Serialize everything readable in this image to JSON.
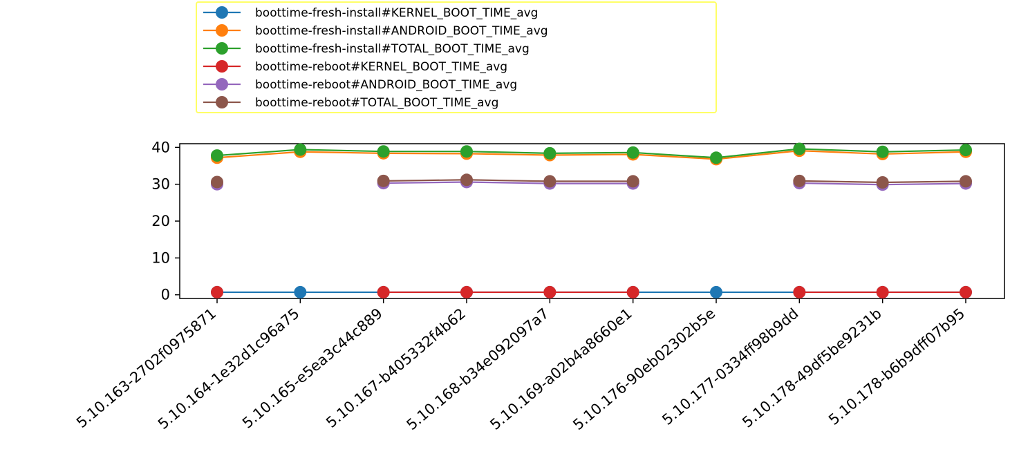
{
  "chart_data": {
    "type": "line",
    "title": "",
    "xlabel": "",
    "ylabel": "",
    "categories": [
      "5.10.163-2702f0975871",
      "5.10.164-1e32d1c96a75",
      "5.10.165-e5ea3c44c889",
      "5.10.167-b405332f4b62",
      "5.10.168-b34e092097a7",
      "5.10.169-a02b4a8660e1",
      "5.10.176-90eb02302b5e",
      "5.10.177-0334ff98b9dd",
      "5.10.178-49df5be9231b",
      "5.10.178-b6b9dff07b95"
    ],
    "ylim": [
      -1,
      41
    ],
    "yticks": [
      0,
      10,
      20,
      30,
      40
    ],
    "grid": false,
    "legend_position": "top-left, above plot",
    "series": [
      {
        "name": "boottime-fresh-install#KERNEL_BOOT_TIME_avg",
        "color": "#1f77b4",
        "values": [
          0.7,
          0.7,
          0.7,
          0.7,
          0.7,
          0.7,
          0.7,
          0.7,
          0.7,
          0.7
        ]
      },
      {
        "name": "boottime-fresh-install#ANDROID_BOOT_TIME_avg",
        "color": "#ff7f0e",
        "values": [
          37.2,
          38.8,
          38.4,
          38.3,
          37.9,
          38.1,
          36.8,
          39.1,
          38.2,
          38.8
        ]
      },
      {
        "name": "boottime-fresh-install#TOTAL_BOOT_TIME_avg",
        "color": "#2ca02c",
        "values": [
          37.8,
          39.4,
          38.9,
          38.9,
          38.4,
          38.6,
          37.2,
          39.6,
          38.8,
          39.3
        ]
      },
      {
        "name": "boottime-reboot#KERNEL_BOOT_TIME_avg",
        "color": "#d62728",
        "values": [
          0.7,
          null,
          0.7,
          0.7,
          0.7,
          0.7,
          null,
          0.7,
          0.7,
          0.7
        ]
      },
      {
        "name": "boottime-reboot#ANDROID_BOOT_TIME_avg",
        "color": "#9467bd",
        "values": [
          30.0,
          null,
          30.3,
          30.6,
          30.2,
          30.2,
          null,
          30.3,
          29.9,
          30.2
        ]
      },
      {
        "name": "boottime-reboot#TOTAL_BOOT_TIME_avg",
        "color": "#8c564b",
        "values": [
          30.6,
          null,
          30.9,
          31.2,
          30.8,
          30.8,
          null,
          30.9,
          30.5,
          30.8
        ]
      }
    ]
  }
}
